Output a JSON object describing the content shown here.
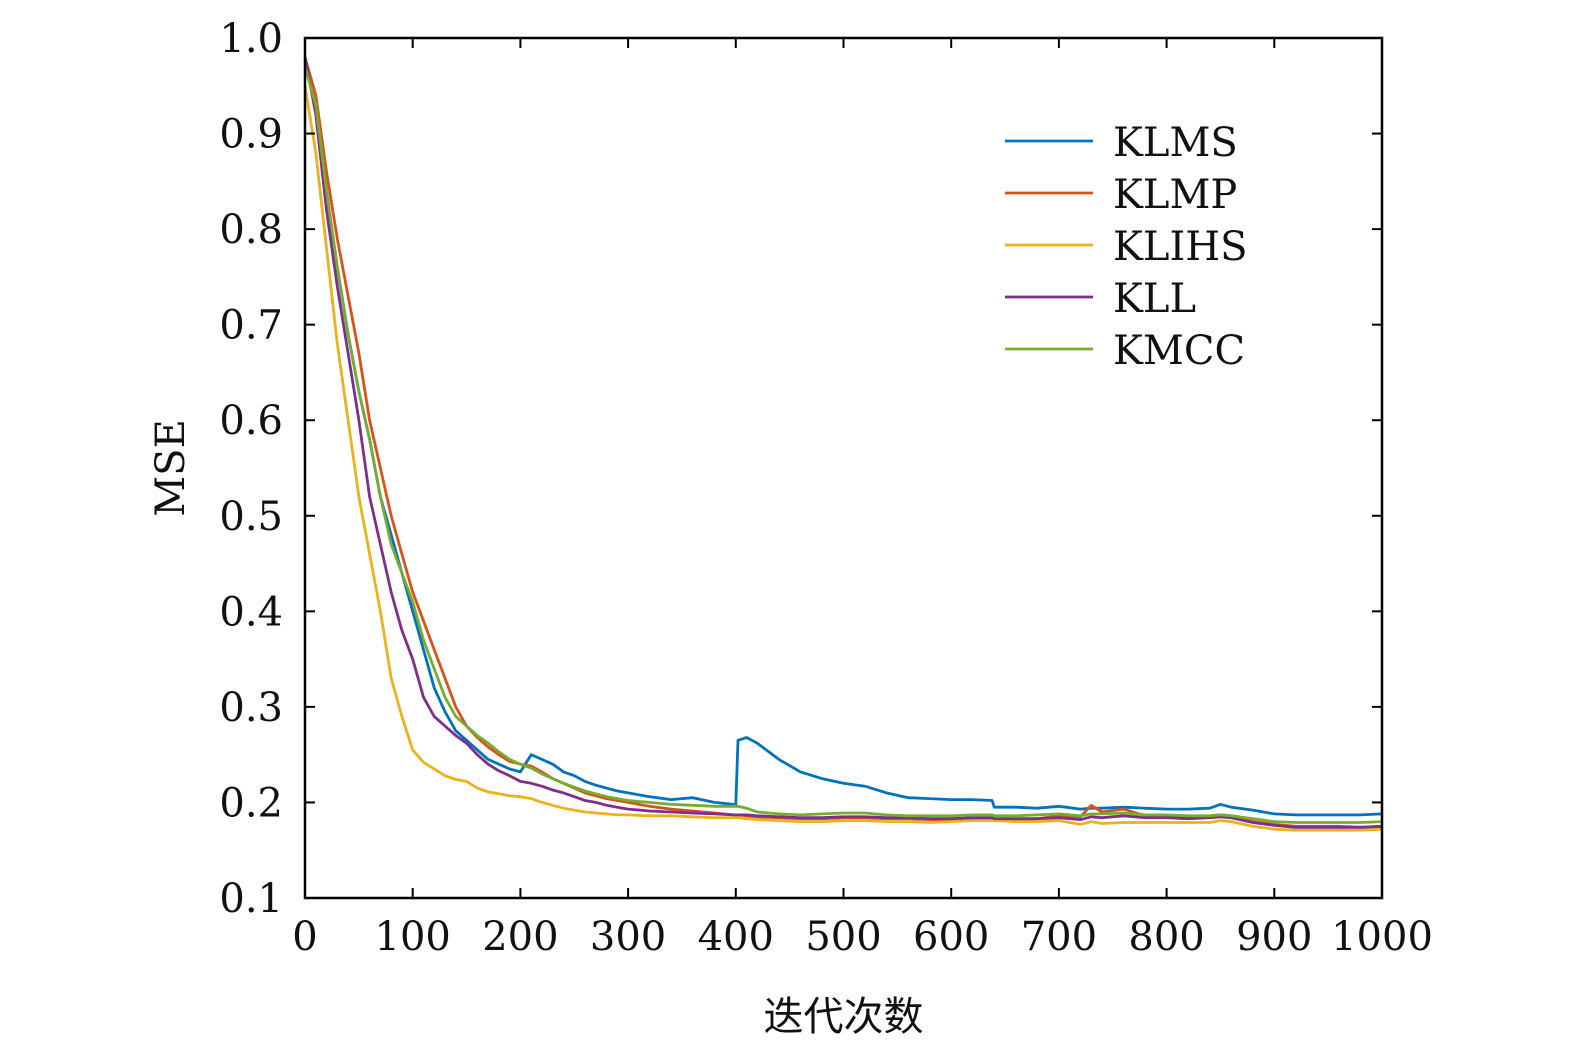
{
  "chart_data": {
    "type": "line",
    "title": "",
    "xlabel": "迭代次数",
    "ylabel": "MSE",
    "xlim": [
      0,
      1000
    ],
    "ylim": [
      0.1,
      1.0
    ],
    "xticks": [
      0,
      100,
      200,
      300,
      400,
      500,
      600,
      700,
      800,
      900,
      1000
    ],
    "xtick_labels": [
      "0",
      "100",
      "200",
      "300",
      "400",
      "500",
      "600",
      "700",
      "800",
      "900",
      "1000"
    ],
    "yticks": [
      0.1,
      0.2,
      0.3,
      0.4,
      0.5,
      0.6,
      0.7,
      0.8,
      0.9,
      1.0
    ],
    "ytick_labels": [
      "0.1",
      "0.2",
      "0.3",
      "0.4",
      "0.5",
      "0.6",
      "0.7",
      "0.8",
      "0.9",
      "1.0"
    ],
    "grid": false,
    "legend_position": "top-right",
    "x": [
      0,
      10,
      20,
      30,
      40,
      50,
      60,
      70,
      80,
      90,
      100,
      110,
      120,
      130,
      140,
      150,
      160,
      170,
      180,
      190,
      200,
      210,
      220,
      230,
      240,
      250,
      260,
      270,
      280,
      290,
      300,
      320,
      340,
      360,
      380,
      398,
      400,
      402,
      410,
      420,
      440,
      460,
      480,
      500,
      520,
      540,
      560,
      580,
      600,
      620,
      638,
      640,
      660,
      680,
      700,
      720,
      730,
      740,
      760,
      780,
      800,
      820,
      840,
      850,
      860,
      880,
      900,
      920,
      940,
      960,
      980,
      1000
    ],
    "series": [
      {
        "name": "KLMS",
        "color": "#0072BD",
        "values": [
          0.98,
          0.93,
          0.84,
          0.76,
          0.69,
          0.63,
          0.58,
          0.52,
          0.48,
          0.44,
          0.4,
          0.36,
          0.32,
          0.295,
          0.275,
          0.265,
          0.255,
          0.245,
          0.24,
          0.235,
          0.232,
          0.25,
          0.245,
          0.24,
          0.232,
          0.228,
          0.222,
          0.218,
          0.215,
          0.212,
          0.21,
          0.206,
          0.203,
          0.205,
          0.2,
          0.198,
          0.198,
          0.265,
          0.268,
          0.262,
          0.245,
          0.232,
          0.225,
          0.22,
          0.217,
          0.21,
          0.205,
          0.204,
          0.203,
          0.203,
          0.202,
          0.195,
          0.195,
          0.194,
          0.196,
          0.193,
          0.194,
          0.194,
          0.195,
          0.194,
          0.193,
          0.193,
          0.194,
          0.198,
          0.195,
          0.192,
          0.188,
          0.187,
          0.187,
          0.187,
          0.187,
          0.188
        ]
      },
      {
        "name": "KLMP",
        "color": "#D95319",
        "values": [
          0.98,
          0.94,
          0.86,
          0.79,
          0.73,
          0.67,
          0.6,
          0.55,
          0.5,
          0.46,
          0.42,
          0.39,
          0.36,
          0.33,
          0.3,
          0.28,
          0.268,
          0.258,
          0.25,
          0.243,
          0.24,
          0.238,
          0.232,
          0.225,
          0.22,
          0.215,
          0.21,
          0.207,
          0.204,
          0.202,
          0.2,
          0.196,
          0.193,
          0.191,
          0.189,
          0.187,
          0.187,
          0.187,
          0.186,
          0.185,
          0.184,
          0.183,
          0.183,
          0.184,
          0.184,
          0.183,
          0.183,
          0.182,
          0.182,
          0.183,
          0.183,
          0.182,
          0.182,
          0.183,
          0.186,
          0.185,
          0.197,
          0.19,
          0.193,
          0.186,
          0.186,
          0.185,
          0.186,
          0.187,
          0.186,
          0.18,
          0.177,
          0.175,
          0.175,
          0.175,
          0.174,
          0.175
        ]
      },
      {
        "name": "KLIHS",
        "color": "#EDB120",
        "values": [
          0.95,
          0.88,
          0.78,
          0.68,
          0.6,
          0.52,
          0.46,
          0.4,
          0.33,
          0.29,
          0.255,
          0.242,
          0.235,
          0.228,
          0.224,
          0.222,
          0.215,
          0.211,
          0.209,
          0.207,
          0.206,
          0.204,
          0.2,
          0.197,
          0.194,
          0.192,
          0.19,
          0.189,
          0.188,
          0.187,
          0.187,
          0.186,
          0.186,
          0.185,
          0.184,
          0.184,
          0.184,
          0.184,
          0.183,
          0.182,
          0.181,
          0.18,
          0.18,
          0.181,
          0.181,
          0.18,
          0.18,
          0.179,
          0.18,
          0.181,
          0.181,
          0.181,
          0.18,
          0.18,
          0.181,
          0.177,
          0.18,
          0.178,
          0.179,
          0.179,
          0.179,
          0.179,
          0.179,
          0.181,
          0.18,
          0.175,
          0.172,
          0.171,
          0.171,
          0.171,
          0.171,
          0.172
        ]
      },
      {
        "name": "KLL",
        "color": "#7E2F8E",
        "values": [
          0.98,
          0.92,
          0.82,
          0.74,
          0.67,
          0.6,
          0.52,
          0.47,
          0.42,
          0.38,
          0.35,
          0.31,
          0.29,
          0.28,
          0.27,
          0.262,
          0.25,
          0.24,
          0.233,
          0.228,
          0.222,
          0.22,
          0.217,
          0.213,
          0.21,
          0.206,
          0.202,
          0.2,
          0.197,
          0.195,
          0.193,
          0.191,
          0.19,
          0.189,
          0.188,
          0.187,
          0.187,
          0.187,
          0.187,
          0.186,
          0.185,
          0.184,
          0.184,
          0.185,
          0.185,
          0.184,
          0.184,
          0.183,
          0.183,
          0.184,
          0.184,
          0.183,
          0.183,
          0.183,
          0.184,
          0.182,
          0.185,
          0.184,
          0.186,
          0.184,
          0.184,
          0.183,
          0.184,
          0.185,
          0.184,
          0.179,
          0.176,
          0.174,
          0.174,
          0.174,
          0.174,
          0.175
        ]
      },
      {
        "name": "KMCC",
        "color": "#77AC30",
        "values": [
          0.97,
          0.93,
          0.84,
          0.76,
          0.69,
          0.63,
          0.58,
          0.52,
          0.47,
          0.44,
          0.41,
          0.37,
          0.34,
          0.31,
          0.29,
          0.28,
          0.27,
          0.262,
          0.253,
          0.245,
          0.24,
          0.236,
          0.23,
          0.225,
          0.22,
          0.216,
          0.212,
          0.209,
          0.206,
          0.204,
          0.202,
          0.2,
          0.198,
          0.197,
          0.196,
          0.196,
          0.196,
          0.196,
          0.194,
          0.19,
          0.188,
          0.187,
          0.188,
          0.189,
          0.189,
          0.187,
          0.186,
          0.186,
          0.186,
          0.187,
          0.187,
          0.186,
          0.186,
          0.187,
          0.188,
          0.186,
          0.188,
          0.188,
          0.189,
          0.187,
          0.187,
          0.186,
          0.186,
          0.187,
          0.186,
          0.183,
          0.18,
          0.179,
          0.179,
          0.179,
          0.179,
          0.18
        ]
      }
    ]
  }
}
